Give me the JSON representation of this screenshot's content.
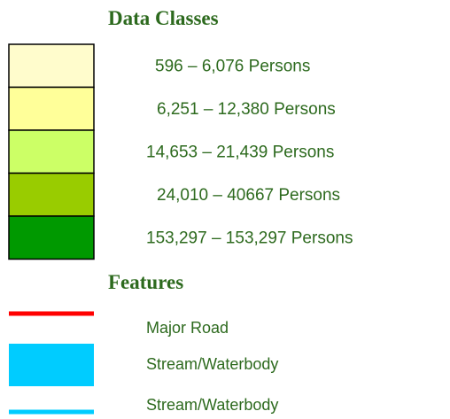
{
  "legend": {
    "title": "Data Classes",
    "classes": [
      {
        "label": "596 – 6,076 Persons",
        "color": "#fffccc"
      },
      {
        "label": "6,251 – 12,380 Persons",
        "color": "#ffff99"
      },
      {
        "label": "14,653 – 21,439 Persons",
        "color": "#ccff66"
      },
      {
        "label": "24,010 – 40667 Persons",
        "color": "#99cc00"
      },
      {
        "label": "153,297 – 153,297 Persons",
        "color": "#009900"
      }
    ],
    "features_title": "Features",
    "features": [
      {
        "label": "Major Road",
        "color": "#ff0000",
        "symbol": "line"
      },
      {
        "label": "Stream/Waterbody",
        "color": "#00ccff",
        "symbol": "area"
      },
      {
        "label": "Stream/Waterbody",
        "color": "#00ccff",
        "symbol": "line"
      }
    ]
  }
}
